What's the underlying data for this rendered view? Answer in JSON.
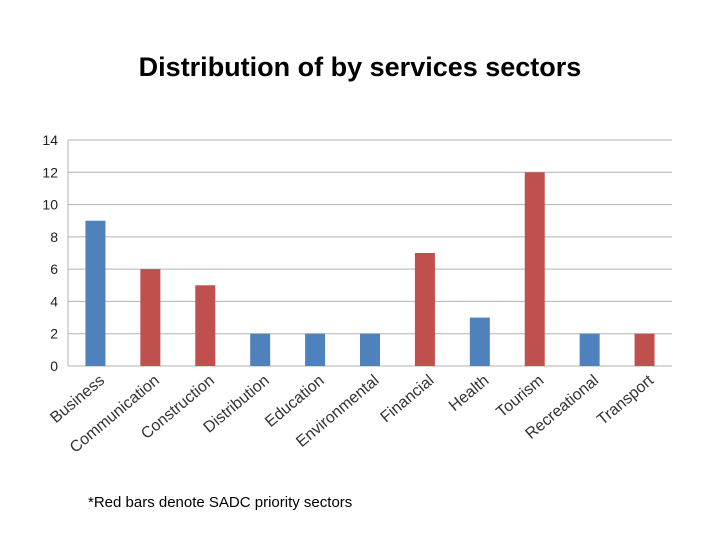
{
  "slide": {
    "title": "Distribution of by services sectors",
    "footnote": "*Red bars denote SADC priority sectors"
  },
  "chart_data": {
    "type": "bar",
    "title": "Distribution of by services sectors",
    "xlabel": "",
    "ylabel": "",
    "ylim": [
      0,
      14
    ],
    "yticks": [
      0,
      2,
      4,
      6,
      8,
      10,
      12,
      14
    ],
    "grid": true,
    "categories": [
      "Business",
      "Communication",
      "Construction",
      "Distribution",
      "Education",
      "Environmental",
      "Financial",
      "Health",
      "Tourism",
      "Recreational",
      "Transport"
    ],
    "values": [
      9,
      6,
      5,
      2,
      2,
      2,
      7,
      3,
      12,
      2,
      2
    ],
    "bar_colors": [
      "#4f81bd",
      "#c0504d",
      "#c0504d",
      "#4f81bd",
      "#4f81bd",
      "#4f81bd",
      "#c0504d",
      "#4f81bd",
      "#c0504d",
      "#4f81bd",
      "#c0504d"
    ],
    "annotation": "*Red bars denote SADC priority sectors"
  }
}
